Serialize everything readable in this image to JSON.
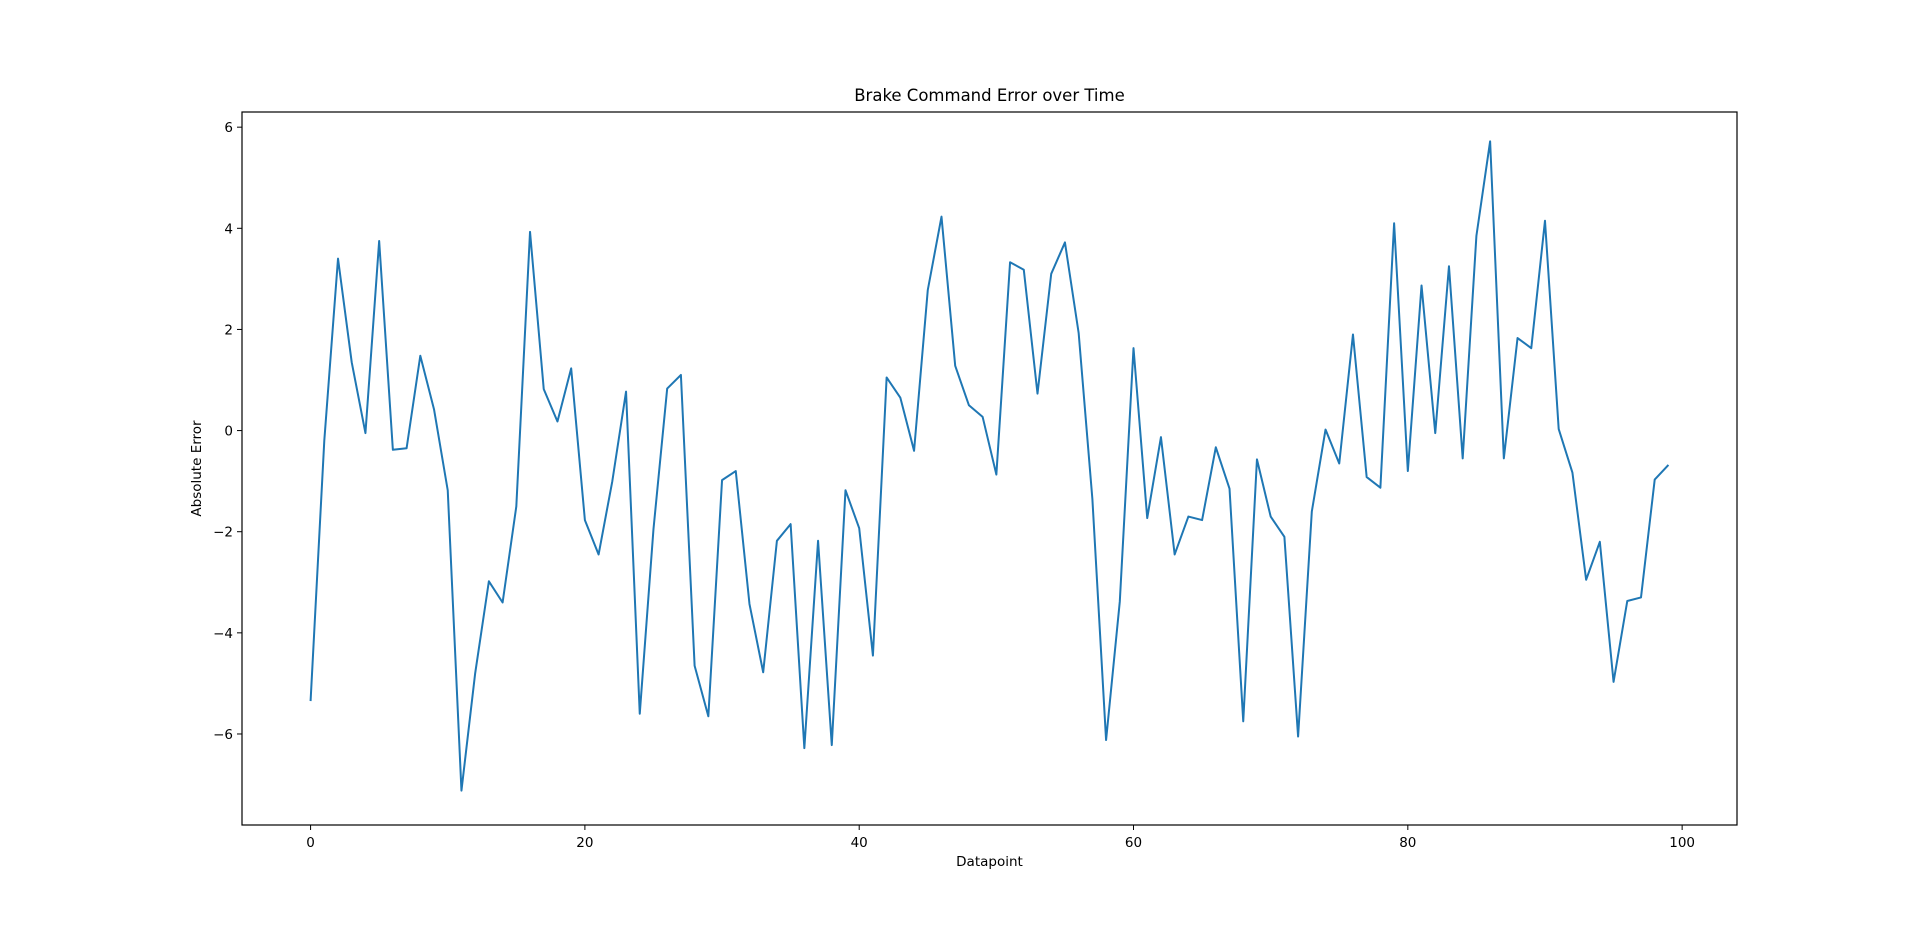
{
  "chart_data": {
    "type": "line",
    "title": "Brake Command Error over Time",
    "xlabel": "Datapoint",
    "ylabel": "Absolute Error",
    "xlim": [
      -5,
      104
    ],
    "ylim": [
      -7.8,
      6.3
    ],
    "xticks": [
      0,
      20,
      40,
      60,
      80,
      100
    ],
    "xtick_labels": [
      "0",
      "20",
      "40",
      "60",
      "80",
      "100"
    ],
    "yticks": [
      -6,
      -4,
      -2,
      0,
      2,
      4,
      6
    ],
    "ytick_labels": [
      "−6",
      "−4",
      "−2",
      "0",
      "2",
      "4",
      "6"
    ],
    "grid": false,
    "line_color": "#1f77b4",
    "series": [
      {
        "x": [
          0,
          1,
          2,
          3,
          4,
          5,
          6,
          7,
          8,
          9,
          10,
          11,
          12,
          13,
          14,
          15,
          16,
          17,
          18,
          19,
          20,
          21,
          22,
          23,
          24,
          25,
          26,
          27,
          28,
          29,
          30,
          31,
          32,
          33,
          34,
          35,
          36,
          37,
          38,
          39,
          40,
          41,
          42,
          43,
          44,
          45,
          46,
          47,
          48,
          49,
          50,
          51,
          52,
          53,
          54,
          55,
          56,
          57,
          58,
          59,
          60,
          61,
          62,
          63,
          64,
          65,
          66,
          67,
          68,
          69,
          70,
          71,
          72,
          73,
          74,
          75,
          76,
          77,
          78,
          79,
          80,
          81,
          82,
          83,
          84,
          85,
          86,
          87,
          88,
          89,
          90,
          91,
          92,
          93,
          94,
          95,
          96,
          97,
          98,
          99
        ],
        "values": [
          -5.35,
          -0.2,
          3.4,
          1.35,
          -0.05,
          3.75,
          -0.38,
          -0.35,
          1.48,
          0.42,
          -1.18,
          -7.12,
          -4.8,
          -2.98,
          -3.4,
          -1.5,
          3.93,
          0.82,
          0.18,
          1.23,
          -1.77,
          -2.45,
          -1.0,
          0.77,
          -5.6,
          -1.95,
          0.83,
          1.1,
          -4.65,
          -5.65,
          -0.98,
          -0.8,
          -3.43,
          -4.78,
          -2.18,
          -1.85,
          -6.28,
          -2.18,
          -6.22,
          -1.18,
          -1.93,
          -4.45,
          1.05,
          0.65,
          -0.4,
          2.78,
          4.23,
          1.28,
          0.5,
          0.27,
          -0.87,
          3.33,
          3.18,
          0.73,
          3.1,
          3.72,
          1.93,
          -1.35,
          -6.12,
          -3.38,
          1.63,
          -1.73,
          -0.13,
          -2.45,
          -1.7,
          -1.77,
          -0.33,
          -1.15,
          -5.75,
          -0.57,
          -1.7,
          -2.1,
          -6.05,
          -1.6,
          0.02,
          -0.65,
          1.9,
          -0.92,
          -1.13,
          4.1,
          -0.8,
          2.87,
          -0.05,
          3.25,
          -0.55,
          3.85,
          5.72,
          -0.55,
          1.83,
          1.63,
          4.15,
          0.03,
          -0.83,
          -2.95,
          -2.2,
          -4.97,
          -3.37,
          -3.3,
          -0.97,
          -0.68
        ]
      }
    ]
  }
}
